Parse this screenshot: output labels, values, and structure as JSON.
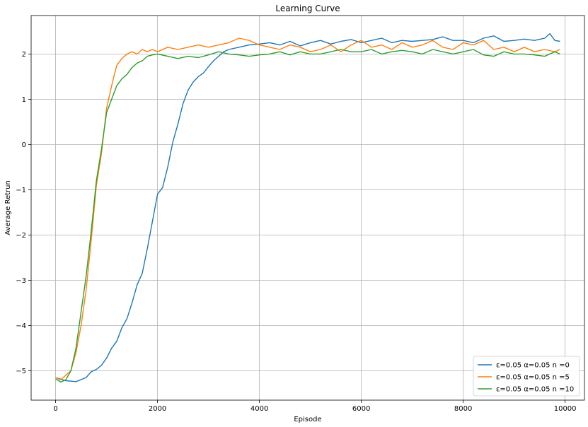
{
  "chart_data": {
    "type": "line",
    "title": "Learning Curve",
    "xlabel": "Episode",
    "ylabel": "Average Retrun",
    "xlim": [
      -480,
      10380
    ],
    "ylim": [
      -5.65,
      2.85
    ],
    "xticks": [
      0,
      2000,
      4000,
      6000,
      8000,
      10000
    ],
    "xtick_labels": [
      "0",
      "2000",
      "4000",
      "6000",
      "8000",
      "10000"
    ],
    "yticks": [
      -5,
      -4,
      -3,
      -2,
      -1,
      0,
      1,
      2
    ],
    "ytick_labels": [
      "−5",
      "−4",
      "−3",
      "−2",
      "−1",
      "0",
      "1",
      "2"
    ],
    "grid": true,
    "legend_position": "lower-right",
    "series": [
      {
        "name": "ε=0.05 α=0.05 n =0",
        "color": "#1f77b4",
        "x": [
          0,
          200,
          400,
          600,
          700,
          800,
          900,
          1000,
          1100,
          1200,
          1300,
          1400,
          1500,
          1600,
          1700,
          1800,
          1900,
          2000,
          2100,
          2200,
          2300,
          2400,
          2500,
          2600,
          2700,
          2800,
          2900,
          3000,
          3100,
          3200,
          3300,
          3400,
          3600,
          3800,
          4000,
          4200,
          4400,
          4600,
          4800,
          5000,
          5200,
          5400,
          5600,
          5800,
          6000,
          6200,
          6400,
          6600,
          6800,
          7000,
          7200,
          7400,
          7600,
          7800,
          8000,
          8200,
          8400,
          8600,
          8800,
          9000,
          9200,
          9400,
          9600,
          9700,
          9800,
          9900
        ],
        "y": [
          -5.15,
          -5.22,
          -5.24,
          -5.15,
          -5.02,
          -4.97,
          -4.88,
          -4.72,
          -4.5,
          -4.35,
          -4.05,
          -3.85,
          -3.5,
          -3.1,
          -2.85,
          -2.3,
          -1.7,
          -1.1,
          -0.95,
          -0.5,
          0.05,
          0.45,
          0.9,
          1.2,
          1.38,
          1.5,
          1.58,
          1.72,
          1.85,
          1.95,
          2.05,
          2.1,
          2.15,
          2.2,
          2.22,
          2.25,
          2.2,
          2.28,
          2.18,
          2.25,
          2.3,
          2.22,
          2.28,
          2.32,
          2.25,
          2.3,
          2.35,
          2.25,
          2.3,
          2.28,
          2.3,
          2.32,
          2.38,
          2.3,
          2.3,
          2.25,
          2.35,
          2.4,
          2.28,
          2.3,
          2.33,
          2.3,
          2.35,
          2.45,
          2.3,
          2.28
        ]
      },
      {
        "name": "ε=0.05 α=0.05 n =5",
        "color": "#ff7f0e",
        "x": [
          0,
          100,
          200,
          300,
          400,
          500,
          600,
          700,
          800,
          900,
          1000,
          1100,
          1200,
          1300,
          1400,
          1500,
          1600,
          1700,
          1800,
          1900,
          2000,
          2200,
          2400,
          2600,
          2800,
          3000,
          3200,
          3400,
          3600,
          3800,
          4000,
          4200,
          4400,
          4600,
          4800,
          5000,
          5200,
          5400,
          5600,
          5800,
          6000,
          6200,
          6400,
          6600,
          6800,
          7000,
          7200,
          7400,
          7600,
          7800,
          8000,
          8200,
          8400,
          8600,
          8800,
          9000,
          9200,
          9400,
          9600,
          9800,
          9900
        ],
        "y": [
          -5.15,
          -5.2,
          -5.1,
          -5.0,
          -4.6,
          -4.0,
          -3.2,
          -2.1,
          -0.9,
          -0.2,
          0.8,
          1.3,
          1.75,
          1.9,
          2.0,
          2.05,
          2.0,
          2.1,
          2.05,
          2.1,
          2.05,
          2.15,
          2.1,
          2.15,
          2.2,
          2.15,
          2.2,
          2.25,
          2.35,
          2.3,
          2.2,
          2.15,
          2.1,
          2.2,
          2.15,
          2.05,
          2.1,
          2.2,
          2.05,
          2.2,
          2.3,
          2.15,
          2.2,
          2.1,
          2.25,
          2.15,
          2.2,
          2.3,
          2.15,
          2.1,
          2.25,
          2.2,
          2.3,
          2.1,
          2.15,
          2.05,
          2.15,
          2.05,
          2.1,
          2.05,
          2.1
        ]
      },
      {
        "name": "ε=0.05 α=0.05 n =10",
        "color": "#2ca02c",
        "x": [
          0,
          100,
          200,
          300,
          400,
          500,
          600,
          700,
          800,
          900,
          1000,
          1100,
          1200,
          1300,
          1400,
          1500,
          1600,
          1700,
          1800,
          1900,
          2000,
          2200,
          2400,
          2600,
          2800,
          3000,
          3200,
          3400,
          3600,
          3800,
          4000,
          4200,
          4400,
          4600,
          4800,
          5000,
          5200,
          5400,
          5600,
          5800,
          6000,
          6200,
          6400,
          6600,
          6800,
          7000,
          7200,
          7400,
          7600,
          7800,
          8000,
          8200,
          8400,
          8600,
          8800,
          9000,
          9200,
          9400,
          9600,
          9800,
          9900
        ],
        "y": [
          -5.18,
          -5.25,
          -5.2,
          -5.0,
          -4.5,
          -3.7,
          -2.9,
          -1.9,
          -0.8,
          -0.1,
          0.7,
          1.0,
          1.3,
          1.45,
          1.55,
          1.7,
          1.8,
          1.85,
          1.95,
          1.98,
          2.0,
          1.95,
          1.9,
          1.95,
          1.92,
          1.98,
          2.05,
          2.0,
          1.98,
          1.95,
          1.98,
          2.0,
          2.05,
          1.98,
          2.05,
          2.0,
          2.0,
          2.05,
          2.1,
          2.05,
          2.05,
          2.1,
          2.0,
          2.05,
          2.08,
          2.05,
          2.0,
          2.1,
          2.05,
          2.0,
          2.05,
          2.1,
          1.98,
          1.95,
          2.05,
          2.0,
          2.0,
          1.98,
          1.95,
          2.05,
          2.0
        ]
      }
    ]
  }
}
